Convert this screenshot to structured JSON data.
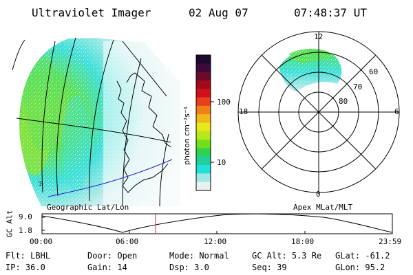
{
  "header": {
    "instrument": "Ultraviolet Imager",
    "date": "02 Aug 07",
    "time": "07:48:37 UT"
  },
  "left_map": {
    "label": "Geographic Lat/Lon"
  },
  "right_map": {
    "label": "Apex MLat/MLT",
    "mlt_labels": {
      "top": "12",
      "bottom": "0",
      "left": "18",
      "right": "6"
    },
    "lat_labels": [
      "60",
      "70",
      "80"
    ]
  },
  "colorbar": {
    "unit_label": "photon cm⁻²s⁻¹",
    "tick_labels": [
      "100",
      "10"
    ],
    "colors": [
      "#1a0a2e",
      "#3a0a3a",
      "#6a0a2a",
      "#a00a1a",
      "#d0101a",
      "#e8401a",
      "#f0801a",
      "#f0b81a",
      "#e8e81a",
      "#b8e81a",
      "#70e01a",
      "#30d050",
      "#20d0a0",
      "#20e0d8",
      "#a0e8e8",
      "#e8f0f0"
    ]
  },
  "altitude_strip": {
    "ylabel": "GC Alt",
    "y_ticks": [
      "9.0",
      "1.8"
    ],
    "x_ticks": [
      "00:00",
      "06:00",
      "12:00",
      "18:00",
      "23:59"
    ]
  },
  "info": {
    "row1": [
      {
        "label": "Flt:",
        "value": "LBHL"
      },
      {
        "label": "Door:",
        "value": "Open"
      },
      {
        "label": "Mode:",
        "value": "Normal"
      },
      {
        "label": "GC Alt:",
        "value": "5.3 Re"
      },
      {
        "label": "GLat:",
        "value": "-61.2"
      }
    ],
    "row2": [
      {
        "label": "IP:",
        "value": "36.0"
      },
      {
        "label": "Gain:",
        "value": "14"
      },
      {
        "label": "Dsp:",
        "value": "3.0"
      },
      {
        "label": "Seq:",
        "value": "39"
      },
      {
        "label": "GLon:",
        "value": "95.2"
      }
    ]
  },
  "colors": {
    "aurora_green": "#5ce05a",
    "aurora_cyan": "#3fe0d8",
    "aurora_pale": "#c8ecec",
    "coast_blue": "#2020d0",
    "marker_red": "#e02020"
  }
}
